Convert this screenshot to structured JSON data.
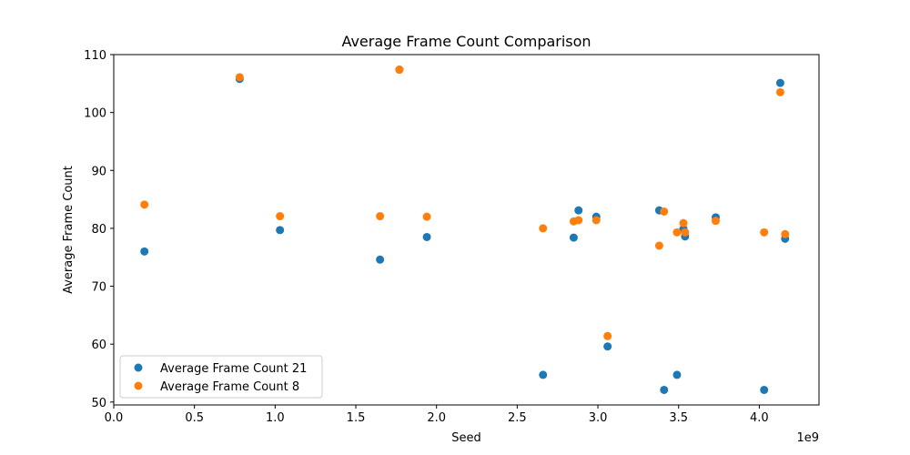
{
  "chart_data": {
    "type": "scatter",
    "title": "Average Frame Count Comparison",
    "xlabel": "Seed",
    "ylabel": "Average Frame Count",
    "x_offset_label": "1e9",
    "xlim": [
      0.0,
      4.37
    ],
    "ylim": [
      49.5,
      110
    ],
    "x_ticks": [
      0.0,
      0.5,
      1.0,
      1.5,
      2.0,
      2.5,
      3.0,
      3.5,
      4.0
    ],
    "x_tick_labels": [
      "0.0",
      "0.5",
      "1.0",
      "1.5",
      "2.0",
      "2.5",
      "3.0",
      "3.5",
      "4.0"
    ],
    "y_ticks": [
      50,
      60,
      70,
      80,
      90,
      100,
      110
    ],
    "y_tick_labels": [
      "50",
      "60",
      "70",
      "80",
      "90",
      "100",
      "110"
    ],
    "grid": false,
    "legend_position": "lower-left",
    "series": [
      {
        "name": "Average Frame Count 21",
        "color": "#1f77b4",
        "points": [
          [
            0.19,
            76.0
          ],
          [
            0.78,
            105.8
          ],
          [
            1.03,
            79.7
          ],
          [
            1.65,
            74.6
          ],
          [
            1.77,
            107.4
          ],
          [
            1.94,
            78.5
          ],
          [
            2.66,
            54.7
          ],
          [
            2.85,
            78.4
          ],
          [
            2.88,
            83.1
          ],
          [
            2.99,
            82.0
          ],
          [
            3.06,
            59.6
          ],
          [
            3.38,
            83.1
          ],
          [
            3.41,
            52.1
          ],
          [
            3.49,
            54.7
          ],
          [
            3.53,
            79.9
          ],
          [
            3.54,
            78.6
          ],
          [
            3.73,
            81.9
          ],
          [
            4.03,
            52.1
          ],
          [
            4.13,
            105.1
          ],
          [
            4.16,
            78.2
          ]
        ]
      },
      {
        "name": "Average Frame Count 8",
        "color": "#ff7f0e",
        "points": [
          [
            0.19,
            84.1
          ],
          [
            0.78,
            106.1
          ],
          [
            1.03,
            82.1
          ],
          [
            1.65,
            82.1
          ],
          [
            1.77,
            107.4
          ],
          [
            1.94,
            82.0
          ],
          [
            2.66,
            80.0
          ],
          [
            2.85,
            81.2
          ],
          [
            2.88,
            81.4
          ],
          [
            2.99,
            81.4
          ],
          [
            3.06,
            61.4
          ],
          [
            3.38,
            77.0
          ],
          [
            3.41,
            82.9
          ],
          [
            3.49,
            79.3
          ],
          [
            3.53,
            80.9
          ],
          [
            3.54,
            79.3
          ],
          [
            3.73,
            81.3
          ],
          [
            4.03,
            79.3
          ],
          [
            4.13,
            103.5
          ],
          [
            4.16,
            79.0
          ]
        ]
      }
    ]
  }
}
